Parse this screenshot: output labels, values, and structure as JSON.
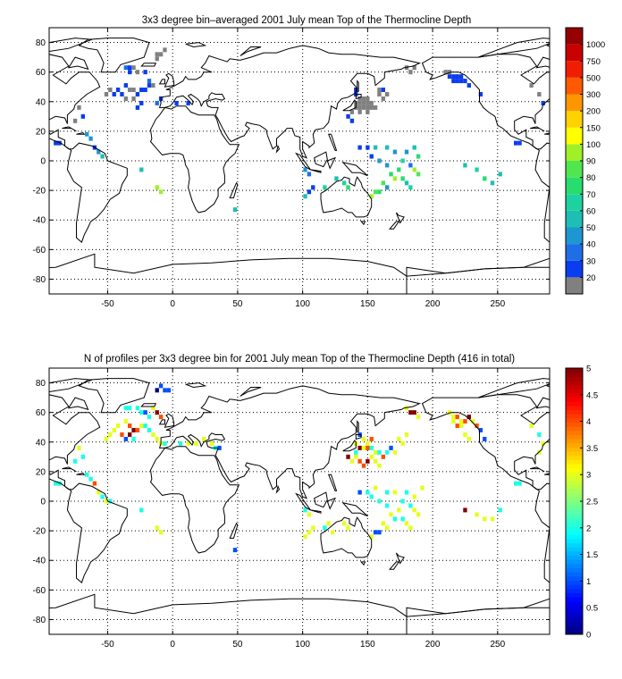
{
  "figure": {
    "background": "#ffffff",
    "grid_color": "#000000",
    "land_outline_color": "#000000"
  },
  "chart_data": [
    {
      "type": "heatmap",
      "title": "3x3 degree bin–averaged 2001 July mean Top of the Thermocline Depth",
      "xlabel": "",
      "ylabel": "",
      "xlim": [
        -95,
        290
      ],
      "ylim": [
        -90,
        90
      ],
      "xticks": [
        -50,
        0,
        50,
        100,
        150,
        200,
        250
      ],
      "yticks": [
        -80,
        -60,
        -40,
        -20,
        0,
        20,
        40,
        60,
        80
      ],
      "grid": true,
      "colorbar": {
        "labels": [
          "20",
          "30",
          "40",
          "50",
          "60",
          "70",
          "80",
          "90",
          "100",
          "150",
          "200",
          "300",
          "500",
          "750",
          "1000"
        ],
        "colors": [
          "#808080",
          "#0a3cf0",
          "#1e6ee6",
          "#1e96d2",
          "#1ebeb4",
          "#1ed2a0",
          "#28dc6e",
          "#50e650",
          "#a0f028",
          "#ffff00",
          "#ffd200",
          "#ff9600",
          "#ff5a00",
          "#f01e00",
          "#c80000",
          "#960000"
        ]
      },
      "cells": [
        [
          -90,
          12,
          1
        ],
        [
          -87,
          12,
          1
        ],
        [
          -12,
          72,
          0
        ],
        [
          -9,
          72,
          0
        ],
        [
          -6,
          75,
          0
        ],
        [
          -12,
          69,
          0
        ],
        [
          -36,
          63,
          2
        ],
        [
          -33,
          63,
          1
        ],
        [
          -33,
          60,
          1
        ],
        [
          -30,
          63,
          0
        ],
        [
          -27,
          60,
          0
        ],
        [
          -21,
          60,
          1
        ],
        [
          -18,
          54,
          2
        ],
        [
          -36,
          51,
          1
        ],
        [
          -33,
          48,
          0
        ],
        [
          -30,
          48,
          0
        ],
        [
          -27,
          45,
          1
        ],
        [
          -24,
          48,
          1
        ],
        [
          -42,
          48,
          1
        ],
        [
          -45,
          45,
          1
        ],
        [
          -48,
          48,
          0
        ],
        [
          -51,
          45,
          0
        ],
        [
          -21,
          48,
          1
        ],
        [
          -18,
          51,
          1
        ],
        [
          -15,
          51,
          0
        ],
        [
          -39,
          45,
          1
        ],
        [
          -36,
          42,
          0
        ],
        [
          -30,
          42,
          0
        ],
        [
          -24,
          39,
          1
        ],
        [
          -12,
          39,
          2
        ],
        [
          -9,
          42,
          1
        ],
        [
          -27,
          36,
          1
        ],
        [
          -72,
          36,
          0
        ],
        [
          -69,
          30,
          1
        ],
        [
          -75,
          27,
          0
        ],
        [
          -66,
          18,
          3
        ],
        [
          -63,
          15,
          3
        ],
        [
          -60,
          9,
          1
        ],
        [
          -57,
          6,
          3
        ],
        [
          -54,
          3,
          4
        ],
        [
          -24,
          -6,
          4
        ],
        [
          -12,
          -18,
          8
        ],
        [
          -9,
          -21,
          8
        ],
        [
          48,
          -33,
          4
        ],
        [
          3,
          39,
          1
        ],
        [
          12,
          39,
          1
        ],
        [
          144,
          42,
          0
        ],
        [
          147,
          42,
          0
        ],
        [
          150,
          42,
          0
        ],
        [
          141,
          39,
          0
        ],
        [
          144,
          39,
          0
        ],
        [
          147,
          39,
          0
        ],
        [
          150,
          39,
          0
        ],
        [
          153,
          39,
          0
        ],
        [
          141,
          36,
          0
        ],
        [
          144,
          36,
          0
        ],
        [
          147,
          36,
          0
        ],
        [
          150,
          36,
          0
        ],
        [
          153,
          36,
          0
        ],
        [
          156,
          36,
          0
        ],
        [
          138,
          33,
          0
        ],
        [
          144,
          33,
          0
        ],
        [
          150,
          33,
          0
        ],
        [
          159,
          48,
          0
        ],
        [
          159,
          45,
          0
        ],
        [
          162,
          42,
          0
        ],
        [
          165,
          45,
          0
        ],
        [
          162,
          48,
          1
        ],
        [
          141,
          48,
          1
        ],
        [
          141,
          45,
          1
        ],
        [
          135,
          30,
          1
        ],
        [
          138,
          27,
          1
        ],
        [
          180,
          63,
          0
        ],
        [
          183,
          60,
          0
        ],
        [
          186,
          63,
          0
        ],
        [
          213,
          57,
          1
        ],
        [
          216,
          57,
          1
        ],
        [
          219,
          57,
          1
        ],
        [
          222,
          57,
          1
        ],
        [
          216,
          54,
          1
        ],
        [
          219,
          54,
          1
        ],
        [
          222,
          54,
          1
        ],
        [
          225,
          54,
          1
        ],
        [
          210,
          60,
          0
        ],
        [
          213,
          60,
          0
        ],
        [
          228,
          51,
          1
        ],
        [
          237,
          45,
          1
        ],
        [
          264,
          12,
          1
        ],
        [
          267,
          12,
          1
        ],
        [
          276,
          51,
          0
        ],
        [
          282,
          45,
          0
        ],
        [
          285,
          39,
          1
        ],
        [
          144,
          9,
          1
        ],
        [
          150,
          9,
          1
        ],
        [
          156,
          9,
          4
        ],
        [
          165,
          9,
          4
        ],
        [
          171,
          6,
          3
        ],
        [
          180,
          6,
          3
        ],
        [
          186,
          9,
          4
        ],
        [
          189,
          3,
          6
        ],
        [
          153,
          3,
          1
        ],
        [
          159,
          0,
          3
        ],
        [
          165,
          -3,
          3
        ],
        [
          177,
          0,
          5
        ],
        [
          183,
          -3,
          2
        ],
        [
          186,
          -6,
          8
        ],
        [
          189,
          -9,
          7
        ],
        [
          174,
          -6,
          6
        ],
        [
          168,
          -9,
          6
        ],
        [
          171,
          -12,
          8
        ],
        [
          162,
          -15,
          7
        ],
        [
          165,
          -18,
          3
        ],
        [
          159,
          -21,
          6
        ],
        [
          156,
          -21,
          7
        ],
        [
          153,
          -24,
          8
        ],
        [
          180,
          -15,
          4
        ],
        [
          183,
          -18,
          5
        ],
        [
          177,
          -12,
          6
        ],
        [
          102,
          -6,
          3
        ],
        [
          105,
          -9,
          2
        ],
        [
          108,
          -18,
          1
        ],
        [
          105,
          -21,
          1
        ],
        [
          102,
          -24,
          4
        ],
        [
          117,
          -18,
          5
        ],
        [
          126,
          -12,
          4
        ],
        [
          132,
          -15,
          5
        ],
        [
          135,
          -18,
          6
        ],
        [
          225,
          -3,
          4
        ],
        [
          234,
          -6,
          5
        ],
        [
          240,
          -12,
          6
        ],
        [
          246,
          -15,
          4
        ],
        [
          252,
          -9,
          4
        ]
      ]
    },
    {
      "type": "heatmap",
      "title": "N of profiles per 3x3 degree bin for 2001 July mean Top of the Thermocline Depth  (416 in total)",
      "xlabel": "",
      "ylabel": "",
      "xlim": [
        -95,
        290
      ],
      "ylim": [
        -90,
        90
      ],
      "xticks": [
        -50,
        0,
        50,
        100,
        150,
        200,
        250
      ],
      "yticks": [
        -80,
        -60,
        -40,
        -20,
        0,
        20,
        40,
        60,
        80
      ],
      "grid": true,
      "colorbar": {
        "labels": [
          "0",
          "0.5",
          "1",
          "1.5",
          "2",
          "2.5",
          "3",
          "3.5",
          "4",
          "4.5",
          "5"
        ],
        "range": [
          0,
          5
        ]
      },
      "cells": [
        [
          -90,
          12,
          2
        ],
        [
          -87,
          12,
          2
        ],
        [
          -9,
          78,
          1
        ],
        [
          -6,
          75,
          1
        ],
        [
          -3,
          75,
          1
        ],
        [
          -12,
          75,
          0
        ],
        [
          -15,
          63,
          3
        ],
        [
          -12,
          60,
          5
        ],
        [
          -9,
          57,
          4
        ],
        [
          -36,
          63,
          2
        ],
        [
          -33,
          63,
          2
        ],
        [
          -27,
          63,
          2
        ],
        [
          -24,
          60,
          2
        ],
        [
          -21,
          60,
          1
        ],
        [
          -18,
          57,
          2
        ],
        [
          -36,
          54,
          3
        ],
        [
          -33,
          51,
          4
        ],
        [
          -30,
          48,
          5
        ],
        [
          -27,
          48,
          4
        ],
        [
          -24,
          51,
          3
        ],
        [
          -21,
          51,
          2
        ],
        [
          -42,
          51,
          3
        ],
        [
          -45,
          48,
          3
        ],
        [
          -48,
          45,
          3
        ],
        [
          -51,
          42,
          3
        ],
        [
          -18,
          48,
          2
        ],
        [
          -15,
          45,
          3
        ],
        [
          -36,
          42,
          1
        ],
        [
          -30,
          42,
          2
        ],
        [
          -39,
          45,
          4
        ],
        [
          -33,
          45,
          5
        ],
        [
          -12,
          42,
          3
        ],
        [
          -9,
          39,
          3
        ],
        [
          -6,
          39,
          2
        ],
        [
          6,
          39,
          2
        ],
        [
          12,
          39,
          3
        ],
        [
          18,
          39,
          3
        ],
        [
          24,
          42,
          3
        ],
        [
          30,
          39,
          3
        ],
        [
          33,
          36,
          2
        ],
        [
          36,
          36,
          1
        ],
        [
          -72,
          36,
          3
        ],
        [
          -69,
          30,
          2
        ],
        [
          -75,
          27,
          2
        ],
        [
          -66,
          18,
          2
        ],
        [
          -63,
          15,
          2
        ],
        [
          -60,
          12,
          4
        ],
        [
          -57,
          6,
          3
        ],
        [
          -54,
          3,
          2
        ],
        [
          -51,
          0,
          3
        ],
        [
          -48,
          0,
          2
        ],
        [
          -24,
          -6,
          2
        ],
        [
          -12,
          -18,
          3
        ],
        [
          -9,
          -21,
          3
        ],
        [
          48,
          -33,
          1
        ],
        [
          144,
          45,
          1
        ],
        [
          147,
          42,
          3
        ],
        [
          150,
          39,
          3
        ],
        [
          153,
          42,
          4
        ],
        [
          141,
          39,
          3
        ],
        [
          144,
          36,
          5
        ],
        [
          147,
          36,
          3
        ],
        [
          150,
          36,
          4
        ],
        [
          153,
          36,
          2
        ],
        [
          156,
          33,
          3
        ],
        [
          135,
          30,
          5
        ],
        [
          138,
          27,
          3
        ],
        [
          141,
          30,
          3
        ],
        [
          144,
          27,
          4
        ],
        [
          147,
          24,
          4
        ],
        [
          150,
          27,
          5
        ],
        [
          153,
          30,
          3
        ],
        [
          156,
          27,
          3
        ],
        [
          159,
          24,
          3
        ],
        [
          162,
          30,
          4
        ],
        [
          141,
          33,
          2
        ],
        [
          159,
          33,
          2
        ],
        [
          165,
          33,
          2
        ],
        [
          168,
          36,
          1
        ],
        [
          171,
          33,
          3
        ],
        [
          174,
          42,
          3
        ],
        [
          177,
          39,
          3
        ],
        [
          180,
          45,
          3
        ],
        [
          183,
          60,
          5
        ],
        [
          186,
          60,
          5
        ],
        [
          189,
          57,
          3
        ],
        [
          180,
          63,
          3
        ],
        [
          213,
          60,
          3
        ],
        [
          216,
          57,
          3
        ],
        [
          219,
          57,
          4
        ],
        [
          222,
          54,
          3
        ],
        [
          216,
          54,
          3
        ],
        [
          219,
          51,
          4
        ],
        [
          222,
          51,
          3
        ],
        [
          225,
          54,
          4
        ],
        [
          228,
          57,
          5
        ],
        [
          231,
          54,
          3
        ],
        [
          234,
          51,
          4
        ],
        [
          237,
          48,
          1
        ],
        [
          240,
          42,
          1
        ],
        [
          225,
          45,
          3
        ],
        [
          228,
          42,
          3
        ],
        [
          276,
          51,
          3
        ],
        [
          282,
          45,
          2
        ],
        [
          285,
          39,
          3
        ],
        [
          282,
          33,
          3
        ],
        [
          264,
          12,
          2
        ],
        [
          267,
          12,
          2
        ],
        [
          144,
          6,
          1
        ],
        [
          150,
          6,
          2
        ],
        [
          156,
          9,
          3
        ],
        [
          165,
          6,
          2
        ],
        [
          171,
          6,
          3
        ],
        [
          180,
          6,
          2
        ],
        [
          186,
          3,
          3
        ],
        [
          192,
          9,
          3
        ],
        [
          153,
          3,
          2
        ],
        [
          159,
          0,
          2
        ],
        [
          165,
          -3,
          2
        ],
        [
          177,
          0,
          2
        ],
        [
          183,
          -3,
          2
        ],
        [
          186,
          -6,
          3
        ],
        [
          189,
          -9,
          3
        ],
        [
          174,
          -6,
          3
        ],
        [
          168,
          -9,
          3
        ],
        [
          171,
          -12,
          2
        ],
        [
          162,
          -15,
          3
        ],
        [
          165,
          -18,
          3
        ],
        [
          159,
          -21,
          1
        ],
        [
          156,
          -21,
          1
        ],
        [
          153,
          -24,
          3
        ],
        [
          180,
          -15,
          3
        ],
        [
          183,
          -18,
          3
        ],
        [
          177,
          -12,
          2
        ],
        [
          102,
          -6,
          2
        ],
        [
          105,
          -9,
          3
        ],
        [
          108,
          -18,
          3
        ],
        [
          105,
          -21,
          3
        ],
        [
          102,
          -24,
          3
        ],
        [
          117,
          -18,
          2
        ],
        [
          120,
          -15,
          3
        ],
        [
          123,
          -21,
          3
        ],
        [
          132,
          -15,
          3
        ],
        [
          135,
          -18,
          3
        ],
        [
          225,
          -6,
          5
        ],
        [
          234,
          -9,
          3
        ],
        [
          240,
          -12,
          3
        ],
        [
          246,
          -12,
          3
        ],
        [
          252,
          -6,
          2
        ]
      ]
    }
  ]
}
